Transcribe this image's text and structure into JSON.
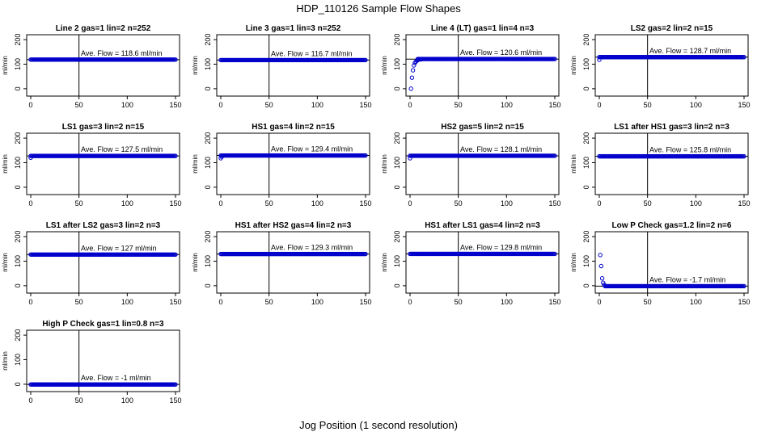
{
  "figure": {
    "title": "HDP_110126  Sample Flow Shapes",
    "xlabel": "Jog Position (1 second resolution)"
  },
  "chart_data": [
    {
      "type": "scatter",
      "title": "Line 2 gas=1 lin=2 n=252",
      "ylabel": "ml/min",
      "xlim": [
        0,
        150
      ],
      "ylim": [
        -30,
        220
      ],
      "xticks": [
        0,
        50,
        100,
        150
      ],
      "yticks": [
        0,
        100,
        200
      ],
      "vline": 50,
      "hline": 118.6,
      "annotation": "Ave. Flow =  118.6  ml/min",
      "series": [
        {
          "x_range": [
            0,
            150
          ],
          "y": 118.6,
          "ramp": []
        }
      ]
    },
    {
      "type": "scatter",
      "title": "Line 3 gas=1 lin=3 n=252",
      "ylabel": "ml/min",
      "xlim": [
        0,
        150
      ],
      "ylim": [
        -30,
        220
      ],
      "xticks": [
        0,
        50,
        100,
        150
      ],
      "yticks": [
        0,
        100,
        200
      ],
      "vline": 50,
      "hline": 116.7,
      "annotation": "Ave. Flow =  116.7  ml/min",
      "series": [
        {
          "x_range": [
            0,
            150
          ],
          "y": 116.7,
          "ramp": []
        }
      ]
    },
    {
      "type": "scatter",
      "title": "Line 4 (LT) gas=1 lin=4 n=3",
      "ylabel": "ml/min",
      "xlim": [
        0,
        150
      ],
      "ylim": [
        -30,
        220
      ],
      "xticks": [
        0,
        50,
        100,
        150
      ],
      "yticks": [
        0,
        100,
        200
      ],
      "vline": 50,
      "hline": 120.6,
      "annotation": "Ave. Flow =  120.6  ml/min",
      "series": [
        {
          "x_range": [
            8,
            150
          ],
          "y": 121,
          "ramp": [
            [
              1,
              0
            ],
            [
              2,
              45
            ],
            [
              3,
              75
            ],
            [
              4,
              95
            ],
            [
              5,
              105
            ],
            [
              6,
              110
            ],
            [
              7,
              114
            ],
            [
              8,
              117
            ],
            [
              10,
              119
            ],
            [
              12,
              120
            ]
          ]
        }
      ]
    },
    {
      "type": "scatter",
      "title": "LS2 gas=2 lin=2 n=15",
      "ylabel": "ml/min",
      "xlim": [
        0,
        150
      ],
      "ylim": [
        -30,
        220
      ],
      "xticks": [
        0,
        50,
        100,
        150
      ],
      "yticks": [
        0,
        100,
        200
      ],
      "vline": 50,
      "hline": 128.7,
      "annotation": "Ave. Flow =  128.7  ml/min",
      "series": [
        {
          "x_range": [
            0,
            150
          ],
          "y": 128.7,
          "ramp": [
            [
              0,
              118
            ]
          ]
        }
      ]
    },
    {
      "type": "scatter",
      "title": "LS1 gas=3 lin=2 n=15",
      "ylabel": "ml/min",
      "xlim": [
        0,
        150
      ],
      "ylim": [
        -30,
        220
      ],
      "xticks": [
        0,
        50,
        100,
        150
      ],
      "yticks": [
        0,
        100,
        200
      ],
      "vline": 50,
      "hline": 127.5,
      "annotation": "Ave. Flow =  127.5  ml/min",
      "series": [
        {
          "x_range": [
            0,
            150
          ],
          "y": 127.5,
          "ramp": [
            [
              0,
              120
            ]
          ]
        }
      ]
    },
    {
      "type": "scatter",
      "title": "HS1 gas=4 lin=2 n=15",
      "ylabel": "ml/min",
      "xlim": [
        0,
        150
      ],
      "ylim": [
        -30,
        220
      ],
      "xticks": [
        0,
        50,
        100,
        150
      ],
      "yticks": [
        0,
        100,
        200
      ],
      "vline": 50,
      "hline": 129.4,
      "annotation": "Ave. Flow =  129.4  ml/min",
      "series": [
        {
          "x_range": [
            0,
            150
          ],
          "y": 129.4,
          "ramp": [
            [
              0,
              118
            ],
            [
              1,
              124
            ]
          ]
        }
      ]
    },
    {
      "type": "scatter",
      "title": "HS2 gas=5 lin=2 n=15",
      "ylabel": "ml/min",
      "xlim": [
        0,
        150
      ],
      "ylim": [
        -30,
        220
      ],
      "xticks": [
        0,
        50,
        100,
        150
      ],
      "yticks": [
        0,
        100,
        200
      ],
      "vline": 50,
      "hline": 128.1,
      "annotation": "Ave. Flow =  128.1  ml/min",
      "series": [
        {
          "x_range": [
            0,
            150
          ],
          "y": 128.1,
          "ramp": [
            [
              0,
              118
            ]
          ]
        }
      ]
    },
    {
      "type": "scatter",
      "title": "LS1 after HS1 gas=3 lin=2 n=3",
      "ylabel": "ml/min",
      "xlim": [
        0,
        150
      ],
      "ylim": [
        -30,
        220
      ],
      "xticks": [
        0,
        50,
        100,
        150
      ],
      "yticks": [
        0,
        100,
        200
      ],
      "vline": 50,
      "hline": 125.8,
      "annotation": "Ave. Flow =  125.8  ml/min",
      "series": [
        {
          "x_range": [
            0,
            150
          ],
          "y": 125.8,
          "ramp": []
        }
      ]
    },
    {
      "type": "scatter",
      "title": "LS1 after LS2 gas=3 lin=2 n=3",
      "ylabel": "ml/min",
      "xlim": [
        0,
        150
      ],
      "ylim": [
        -30,
        220
      ],
      "xticks": [
        0,
        50,
        100,
        150
      ],
      "yticks": [
        0,
        100,
        200
      ],
      "vline": 50,
      "hline": 127,
      "annotation": "Ave. Flow =  127  ml/min",
      "series": [
        {
          "x_range": [
            0,
            150
          ],
          "y": 127,
          "ramp": []
        }
      ]
    },
    {
      "type": "scatter",
      "title": "HS1 after HS2 gas=4 lin=2 n=3",
      "ylabel": "ml/min",
      "xlim": [
        0,
        150
      ],
      "ylim": [
        -30,
        220
      ],
      "xticks": [
        0,
        50,
        100,
        150
      ],
      "yticks": [
        0,
        100,
        200
      ],
      "vline": 50,
      "hline": 129.3,
      "annotation": "Ave. Flow =  129.3  ml/min",
      "series": [
        {
          "x_range": [
            0,
            150
          ],
          "y": 129.3,
          "ramp": []
        }
      ]
    },
    {
      "type": "scatter",
      "title": "HS1 after LS1 gas=4 lin=2 n=3",
      "ylabel": "ml/min",
      "xlim": [
        0,
        150
      ],
      "ylim": [
        -30,
        220
      ],
      "xticks": [
        0,
        50,
        100,
        150
      ],
      "yticks": [
        0,
        100,
        200
      ],
      "vline": 50,
      "hline": 129.8,
      "annotation": "Ave. Flow =  129.8  ml/min",
      "series": [
        {
          "x_range": [
            0,
            150
          ],
          "y": 129.8,
          "ramp": []
        }
      ]
    },
    {
      "type": "scatter",
      "title": "Low P Check gas=1.2 lin=2 n=6",
      "ylabel": "ml/min",
      "xlim": [
        0,
        150
      ],
      "ylim": [
        -30,
        220
      ],
      "xticks": [
        0,
        50,
        100,
        150
      ],
      "yticks": [
        0,
        100,
        200
      ],
      "vline": 50,
      "hline": -1.7,
      "annotation": "Ave. Flow =  -1.7  ml/min",
      "series": [
        {
          "x_range": [
            6,
            150
          ],
          "y": -1.7,
          "ramp": [
            [
              1,
              125
            ],
            [
              2,
              80
            ],
            [
              3,
              30
            ],
            [
              4,
              12
            ],
            [
              5,
              4
            ]
          ]
        }
      ]
    },
    {
      "type": "scatter",
      "title": "High P Check gas=1 lin=0.8 n=3",
      "ylabel": "ml/min",
      "xlim": [
        0,
        150
      ],
      "ylim": [
        -30,
        220
      ],
      "xticks": [
        0,
        50,
        100,
        150
      ],
      "yticks": [
        0,
        100,
        200
      ],
      "vline": 50,
      "hline": -1,
      "annotation": "Ave. Flow =  -1  ml/min",
      "series": [
        {
          "x_range": [
            0,
            150
          ],
          "y": -1,
          "ramp": []
        }
      ]
    }
  ],
  "colors": {
    "points": "#0000cc",
    "axes": "#000000"
  }
}
